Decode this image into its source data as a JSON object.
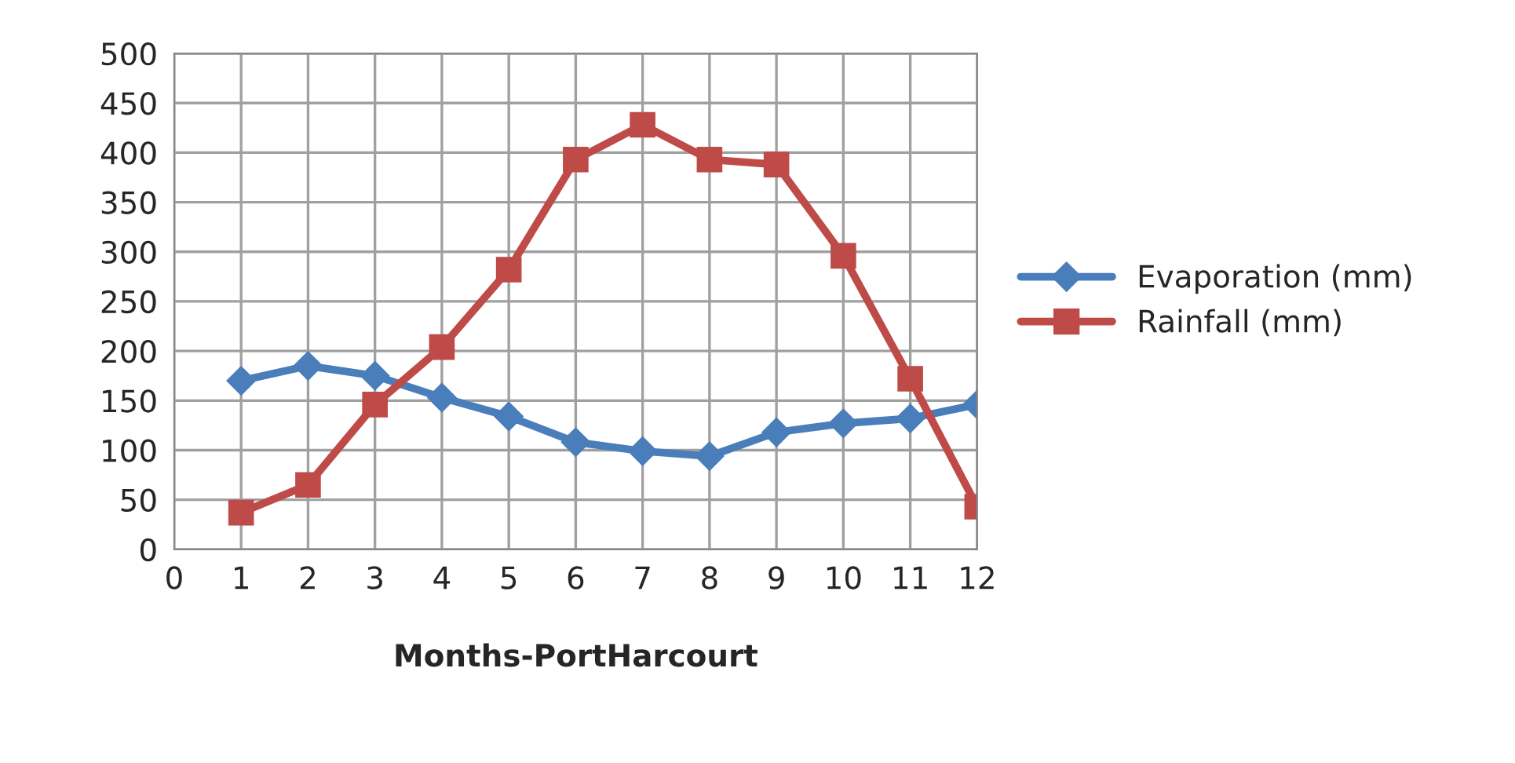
{
  "chart_data": {
    "type": "line",
    "xlabel": "Months-PortHarcourt",
    "x": [
      1,
      2,
      3,
      4,
      5,
      6,
      7,
      8,
      9,
      10,
      11,
      12
    ],
    "series": [
      {
        "name": "Evaporation (mm)",
        "color": "#4a7ebb",
        "marker": "diamond",
        "values": [
          170,
          185,
          175,
          153,
          134,
          108,
          99,
          94,
          118,
          127,
          132,
          146
        ]
      },
      {
        "name": "Rainfall (mm)",
        "color": "#be4b48",
        "marker": "square",
        "values": [
          37,
          65,
          146,
          204,
          282,
          393,
          428,
          393,
          388,
          296,
          172,
          43
        ]
      }
    ],
    "xlim": [
      0,
      12
    ],
    "xticks": [
      0,
      1,
      2,
      3,
      4,
      5,
      6,
      7,
      8,
      9,
      10,
      11,
      12
    ],
    "ylim": [
      0,
      500
    ],
    "yticks": [
      0,
      50,
      100,
      150,
      200,
      250,
      300,
      350,
      400,
      450,
      500
    ],
    "grid": true,
    "legend": "right",
    "line_style": "solid"
  }
}
